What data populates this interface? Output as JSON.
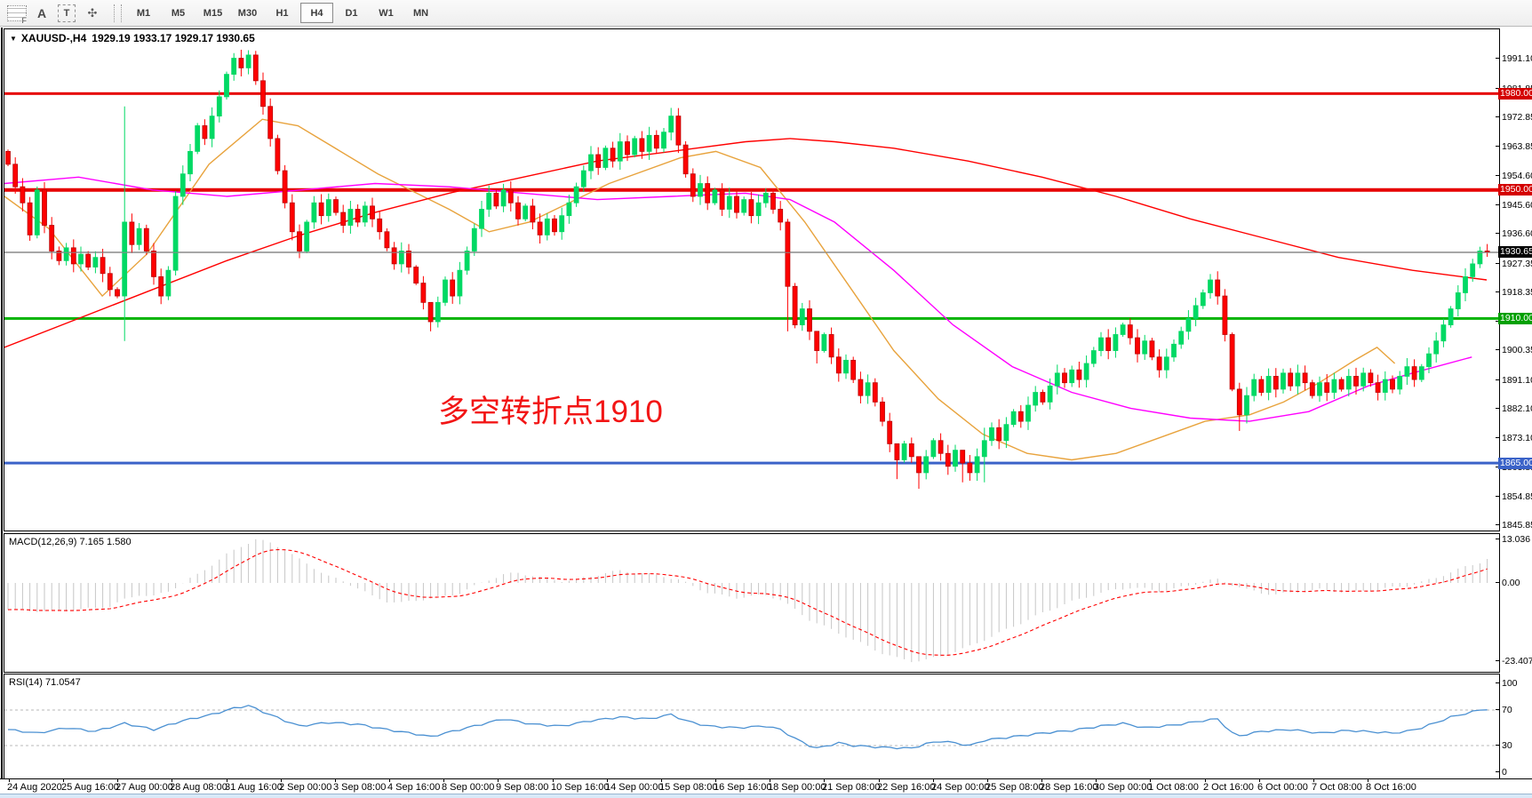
{
  "toolbar": {
    "tools": [
      {
        "id": "templates",
        "glyph": "F"
      },
      {
        "id": "label",
        "glyph": "A"
      },
      {
        "id": "text",
        "glyph": "T"
      },
      {
        "id": "arrows",
        "glyph": "✣"
      }
    ],
    "caret": "▼",
    "timeframes": [
      "M1",
      "M5",
      "M15",
      "M30",
      "H1",
      "H4",
      "D1",
      "W1",
      "MN"
    ],
    "active_timeframe": "H4"
  },
  "header": {
    "dropdown_icon": "▼",
    "symbol": "XAUUSD-,H4",
    "ohlc": "1929.19 1933.17 1929.17 1930.65"
  },
  "annotation": {
    "text": "多空转折点1910",
    "color": "#f21515"
  },
  "panels": {
    "macd_label": "MACD(12,26,9) 7.165 1.580",
    "rsi_label": "RSI(14) 71.0547"
  },
  "price_axis": {
    "ticks": [
      "1991.10",
      "1981.85",
      "1972.85",
      "1963.85",
      "1954.60",
      "1945.60",
      "1936.60",
      "1927.35",
      "1918.35",
      "1909.35",
      "1900.35",
      "1891.10",
      "1882.10",
      "1873.10",
      "1863.85",
      "1854.85",
      "1845.85"
    ]
  },
  "macd_axis": {
    "ticks": [
      "13.036",
      "0.00",
      "-23.407"
    ],
    "values": [
      13.036,
      0,
      -23.407
    ]
  },
  "rsi_axis": {
    "ticks": [
      "100",
      "70",
      "30",
      "0"
    ],
    "values": [
      100,
      70,
      30,
      0
    ]
  },
  "date_axis": [
    "24 Aug 2020",
    "25 Aug 16:00",
    "27 Aug 00:00",
    "28 Aug 08:00",
    "31 Aug 16:00",
    "2 Sep 00:00",
    "3 Sep 08:00",
    "4 Sep 16:00",
    "8 Sep 00:00",
    "9 Sep 08:00",
    "10 Sep 16:00",
    "14 Sep 00:00",
    "15 Sep 08:00",
    "16 Sep 16:00",
    "18 Sep 00:00",
    "21 Sep 08:00",
    "22 Sep 16:00",
    "24 Sep 00:00",
    "25 Sep 08:00",
    "28 Sep 16:00",
    "30 Sep 00:00",
    "1 Oct 08:00",
    "2 Oct 16:00",
    "6 Oct 00:00",
    "7 Oct 08:00",
    "8 Oct 16:00"
  ],
  "colors": {
    "bull": "#00d964",
    "bear": "#ff0000",
    "bear_border": "#b80000",
    "ma_red": "#ff0000",
    "ma_magenta": "#ff00ff",
    "ma_orange": "#e8a33d",
    "macd_bar": "#c6c6c6",
    "macd_signal": "#ff0000",
    "rsi_line": "#4a90d2",
    "rsi_grid": "#b8b8b8",
    "current_line": "#8a8a8a"
  },
  "chart_data": {
    "type": "candlestick",
    "symbol": "XAUUSD",
    "period": "H4",
    "price_range": {
      "min": 1844,
      "max": 2000
    },
    "hlines": [
      {
        "price": 1980.0,
        "label": "1980.00",
        "color": "#e60000",
        "badge": "#d40000",
        "width": 3
      },
      {
        "price": 1950.0,
        "label": "1950.00",
        "color": "#e60000",
        "badge": "#d40000",
        "width": 4
      },
      {
        "price": 1930.65,
        "label": "1930.65",
        "color": "#8a8a8a",
        "badge": "#000000",
        "width": 1
      },
      {
        "price": 1910.0,
        "label": "1910.00",
        "color": "#00b300",
        "badge": "#00a000",
        "width": 3
      },
      {
        "price": 1865.0,
        "label": "1865.00",
        "color": "#3a62c8",
        "badge": "#3a62c8",
        "width": 3
      }
    ],
    "candles": {
      "open_first": 1962,
      "closes": [
        1958,
        1951,
        1946,
        1936,
        1950,
        1939,
        1931,
        1928,
        1932,
        1927,
        1930,
        1926,
        1929,
        1924,
        1919,
        1917,
        1940,
        1933,
        1938,
        1931,
        1923,
        1917,
        1925,
        1948,
        1955,
        1962,
        1970,
        1966,
        1973,
        1979,
        1986,
        1991,
        1988,
        1992,
        1984,
        1976,
        1966,
        1956,
        1946,
        1937,
        1931,
        1940,
        1946,
        1942,
        1947,
        1943,
        1939,
        1944,
        1940,
        1945,
        1941,
        1937,
        1932,
        1927,
        1931,
        1926,
        1921,
        1915,
        1909,
        1915,
        1922,
        1917,
        1925,
        1931,
        1938,
        1944,
        1949,
        1945,
        1950,
        1946,
        1941,
        1945,
        1940,
        1936,
        1941,
        1937,
        1942,
        1946,
        1951,
        1956,
        1961,
        1957,
        1963,
        1959,
        1965,
        1961,
        1966,
        1962,
        1967,
        1963,
        1968,
        1973,
        1964,
        1955,
        1948,
        1952,
        1946,
        1950,
        1944,
        1948,
        1943,
        1947,
        1942,
        1946,
        1949,
        1944,
        1940,
        1920,
        1908,
        1913,
        1906,
        1900,
        1905,
        1898,
        1893,
        1897,
        1891,
        1886,
        1890,
        1884,
        1878,
        1871,
        1866,
        1871,
        1867,
        1862,
        1867,
        1872,
        1868,
        1864,
        1869,
        1865,
        1862,
        1867,
        1872,
        1876,
        1872,
        1877,
        1881,
        1878,
        1883,
        1887,
        1884,
        1889,
        1893,
        1890,
        1894,
        1891,
        1896,
        1900,
        1904,
        1900,
        1905,
        1908,
        1904,
        1899,
        1903,
        1898,
        1894,
        1898,
        1902,
        1906,
        1910,
        1914,
        1918,
        1922,
        1917,
        1905,
        1888,
        1880,
        1886,
        1891,
        1887,
        1892,
        1888,
        1893,
        1889,
        1893,
        1890,
        1886,
        1890,
        1887,
        1891,
        1888,
        1892,
        1889,
        1893,
        1890,
        1887,
        1891,
        1888,
        1892,
        1895,
        1891,
        1895,
        1899,
        1903,
        1908,
        1913,
        1918,
        1923,
        1927,
        1931,
        1930.65
      ],
      "wick_overrides": {
        "16": [
          1976,
          1903
        ],
        "31": [
          1992.6,
          1984
        ],
        "33": [
          1993.5,
          1986
        ],
        "58": [
          1913,
          1906
        ],
        "107": [
          1941,
          1906
        ],
        "111": [
          1906,
          1896
        ],
        "122": [
          1870,
          1860
        ],
        "125": [
          1866,
          1857
        ],
        "131": [
          1869,
          1859
        ],
        "134": [
          1876,
          1859
        ],
        "169": [
          1890,
          1875
        ],
        "203": [
          1933.17,
          1929.17
        ]
      }
    },
    "ma_red_anchors": [
      [
        0,
        1901
      ],
      [
        0.05,
        1910
      ],
      [
        0.1,
        1919
      ],
      [
        0.15,
        1928
      ],
      [
        0.2,
        1936
      ],
      [
        0.25,
        1943
      ],
      [
        0.3,
        1949
      ],
      [
        0.35,
        1954
      ],
      [
        0.4,
        1959
      ],
      [
        0.45,
        1962
      ],
      [
        0.5,
        1965
      ],
      [
        0.53,
        1966
      ],
      [
        0.56,
        1965
      ],
      [
        0.6,
        1963
      ],
      [
        0.65,
        1959
      ],
      [
        0.7,
        1954
      ],
      [
        0.75,
        1948
      ],
      [
        0.8,
        1941
      ],
      [
        0.85,
        1935
      ],
      [
        0.9,
        1929
      ],
      [
        0.95,
        1925
      ],
      [
        1,
        1922
      ]
    ],
    "ma_magenta_anchors": [
      [
        0,
        1952
      ],
      [
        0.05,
        1954
      ],
      [
        0.1,
        1950
      ],
      [
        0.15,
        1948
      ],
      [
        0.2,
        1950
      ],
      [
        0.25,
        1952
      ],
      [
        0.3,
        1951
      ],
      [
        0.35,
        1949
      ],
      [
        0.4,
        1947
      ],
      [
        0.45,
        1948
      ],
      [
        0.5,
        1949
      ],
      [
        0.53,
        1947
      ],
      [
        0.56,
        1940
      ],
      [
        0.6,
        1925
      ],
      [
        0.64,
        1908
      ],
      [
        0.68,
        1895
      ],
      [
        0.72,
        1887
      ],
      [
        0.76,
        1882
      ],
      [
        0.8,
        1879
      ],
      [
        0.84,
        1878
      ],
      [
        0.88,
        1881
      ],
      [
        0.92,
        1889
      ],
      [
        0.95,
        1893
      ],
      [
        0.99,
        1898
      ]
    ],
    "ma_orange_anchors": [
      [
        0,
        1948
      ],
      [
        0.03,
        1938
      ],
      [
        0.066,
        1917
      ],
      [
        0.096,
        1930
      ],
      [
        0.138,
        1958
      ],
      [
        0.174,
        1972
      ],
      [
        0.198,
        1970
      ],
      [
        0.252,
        1955
      ],
      [
        0.3,
        1944
      ],
      [
        0.327,
        1937
      ],
      [
        0.354,
        1940
      ],
      [
        0.408,
        1952
      ],
      [
        0.456,
        1960
      ],
      [
        0.48,
        1962
      ],
      [
        0.51,
        1957
      ],
      [
        0.54,
        1940
      ],
      [
        0.57,
        1920
      ],
      [
        0.6,
        1900
      ],
      [
        0.63,
        1885
      ],
      [
        0.66,
        1874
      ],
      [
        0.69,
        1868
      ],
      [
        0.72,
        1866
      ],
      [
        0.75,
        1868
      ],
      [
        0.78,
        1873
      ],
      [
        0.81,
        1878
      ],
      [
        0.84,
        1880
      ],
      [
        0.863,
        1884
      ],
      [
        0.887,
        1890
      ],
      [
        0.911,
        1897
      ],
      [
        0.926,
        1901
      ],
      [
        0.938,
        1896
      ]
    ],
    "macd": {
      "params": "12,26,9",
      "value": 7.165,
      "signal": 1.58,
      "range": [
        13.036,
        -23.407
      ],
      "anchors": [
        [
          0,
          -8
        ],
        [
          5,
          -8.5
        ],
        [
          10,
          -8
        ],
        [
          14,
          -7
        ],
        [
          16,
          -5
        ],
        [
          18,
          -3.5
        ],
        [
          20,
          -4
        ],
        [
          22,
          -2.5
        ],
        [
          24,
          0
        ],
        [
          26,
          2.5
        ],
        [
          28,
          5.5
        ],
        [
          30,
          8.5
        ],
        [
          32,
          11
        ],
        [
          34,
          13
        ],
        [
          36,
          12
        ],
        [
          38,
          10
        ],
        [
          40,
          7
        ],
        [
          42,
          4.5
        ],
        [
          44,
          2
        ],
        [
          46,
          0.5
        ],
        [
          48,
          -1.5
        ],
        [
          50,
          -4
        ],
        [
          52,
          -5.5
        ],
        [
          54,
          -6
        ],
        [
          56,
          -5.2
        ],
        [
          58,
          -4.6
        ],
        [
          60,
          -4
        ],
        [
          62,
          -3
        ],
        [
          64,
          -1
        ],
        [
          66,
          1
        ],
        [
          68,
          2.5
        ],
        [
          70,
          3
        ],
        [
          72,
          2.2
        ],
        [
          74,
          1.2
        ],
        [
          76,
          0.6
        ],
        [
          78,
          1
        ],
        [
          80,
          2
        ],
        [
          82,
          3
        ],
        [
          84,
          3.6
        ],
        [
          86,
          3.2
        ],
        [
          88,
          2.6
        ],
        [
          90,
          2
        ],
        [
          92,
          1
        ],
        [
          94,
          -1
        ],
        [
          96,
          -2.8
        ],
        [
          98,
          -3.8
        ],
        [
          100,
          -4.4
        ],
        [
          102,
          -4
        ],
        [
          104,
          -3.6
        ],
        [
          106,
          -5
        ],
        [
          108,
          -8
        ],
        [
          110,
          -11
        ],
        [
          112,
          -13
        ],
        [
          114,
          -15
        ],
        [
          116,
          -17
        ],
        [
          118,
          -19
        ],
        [
          120,
          -21
        ],
        [
          122,
          -22.5
        ],
        [
          124,
          -23.4
        ],
        [
          126,
          -23
        ],
        [
          128,
          -22
        ],
        [
          130,
          -20.5
        ],
        [
          132,
          -19
        ],
        [
          134,
          -17
        ],
        [
          136,
          -15
        ],
        [
          138,
          -13
        ],
        [
          140,
          -11
        ],
        [
          142,
          -9
        ],
        [
          144,
          -7.2
        ],
        [
          146,
          -5.6
        ],
        [
          148,
          -4.2
        ],
        [
          150,
          -3
        ],
        [
          152,
          -2
        ],
        [
          154,
          -1.4
        ],
        [
          156,
          -1.8
        ],
        [
          158,
          -2.4
        ],
        [
          160,
          -1.8
        ],
        [
          162,
          -0.8
        ],
        [
          164,
          0.5
        ],
        [
          166,
          1
        ],
        [
          168,
          -0.5
        ],
        [
          170,
          -2
        ],
        [
          172,
          -3
        ],
        [
          174,
          -3.4
        ],
        [
          176,
          -3
        ],
        [
          178,
          -2.4
        ],
        [
          180,
          -2
        ],
        [
          182,
          -2.4
        ],
        [
          184,
          -2.8
        ],
        [
          186,
          -2.4
        ],
        [
          188,
          -2
        ],
        [
          190,
          -1.4
        ],
        [
          192,
          -0.8
        ],
        [
          194,
          0.2
        ],
        [
          196,
          1.6
        ],
        [
          198,
          3.2
        ],
        [
          200,
          4.8
        ],
        [
          202,
          6.2
        ],
        [
          203,
          7.165
        ]
      ]
    },
    "rsi": {
      "period": 14,
      "value": 71.0547,
      "levels": [
        70,
        30
      ],
      "anchors": [
        [
          0,
          48
        ],
        [
          4,
          44
        ],
        [
          8,
          50
        ],
        [
          12,
          46
        ],
        [
          16,
          55
        ],
        [
          20,
          48
        ],
        [
          24,
          58
        ],
        [
          28,
          65
        ],
        [
          31,
          72
        ],
        [
          33,
          75
        ],
        [
          35,
          68
        ],
        [
          38,
          58
        ],
        [
          40,
          52
        ],
        [
          44,
          56
        ],
        [
          48,
          54
        ],
        [
          52,
          48
        ],
        [
          56,
          43
        ],
        [
          58,
          40
        ],
        [
          62,
          48
        ],
        [
          66,
          56
        ],
        [
          68,
          60
        ],
        [
          72,
          54
        ],
        [
          76,
          52
        ],
        [
          80,
          58
        ],
        [
          84,
          62
        ],
        [
          88,
          60
        ],
        [
          91,
          65
        ],
        [
          93,
          58
        ],
        [
          96,
          52
        ],
        [
          100,
          50
        ],
        [
          104,
          52
        ],
        [
          106,
          48
        ],
        [
          108,
          38
        ],
        [
          110,
          30
        ],
        [
          111,
          27
        ],
        [
          114,
          33
        ],
        [
          116,
          30
        ],
        [
          120,
          28
        ],
        [
          124,
          27
        ],
        [
          126,
          32
        ],
        [
          128,
          35
        ],
        [
          130,
          33
        ],
        [
          132,
          30
        ],
        [
          134,
          36
        ],
        [
          138,
          40
        ],
        [
          142,
          44
        ],
        [
          146,
          47
        ],
        [
          150,
          52
        ],
        [
          153,
          55
        ],
        [
          156,
          50
        ],
        [
          160,
          53
        ],
        [
          164,
          58
        ],
        [
          166,
          60
        ],
        [
          168,
          44
        ],
        [
          169,
          41
        ],
        [
          172,
          46
        ],
        [
          176,
          48
        ],
        [
          180,
          44
        ],
        [
          184,
          47
        ],
        [
          188,
          45
        ],
        [
          190,
          44
        ],
        [
          192,
          46
        ],
        [
          194,
          50
        ],
        [
          196,
          56
        ],
        [
          198,
          62
        ],
        [
          200,
          66
        ],
        [
          202,
          70
        ],
        [
          203,
          71.05
        ]
      ]
    }
  }
}
